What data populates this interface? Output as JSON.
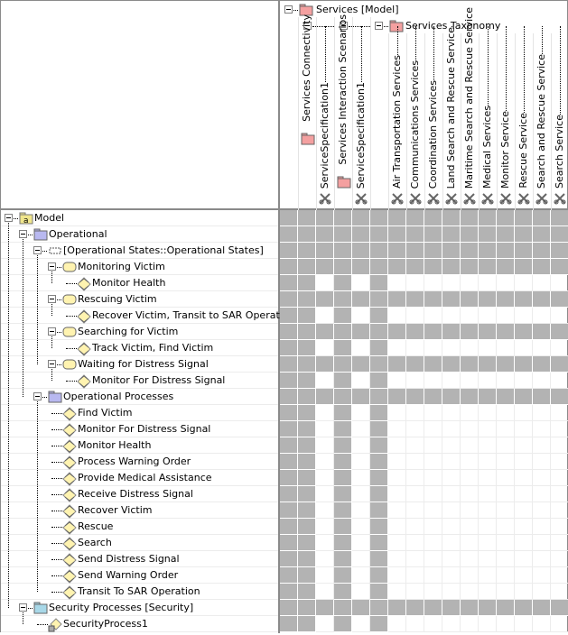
{
  "colors": {
    "na_cell": "#b3b3b3",
    "package": "#f4a0a0",
    "op_package": "#b8b8f0",
    "security_package": "#a8d8e8",
    "state": "#fff3b0"
  },
  "header": {
    "root": {
      "label": "Services [Model]",
      "icon": "package-icon"
    },
    "taxonomy": {
      "label": "Services Taxonomy",
      "icon": "package-icon"
    }
  },
  "columns": [
    {
      "label": "",
      "icon": "",
      "is_group": true
    },
    {
      "label": "Services Connectivity",
      "icon": "package-icon",
      "is_group": true
    },
    {
      "label": "ServiceSpecification1",
      "icon": "service-specification-icon",
      "is_group": false
    },
    {
      "label": "Services Interaction Scenarios",
      "icon": "package-icon",
      "is_group": true
    },
    {
      "label": "ServiceSpecification1",
      "icon": "service-specification-icon",
      "is_group": false
    },
    {
      "label": "",
      "icon": "",
      "is_group": true
    },
    {
      "label": "Air Transportation Services",
      "icon": "service-specification-icon",
      "is_group": false
    },
    {
      "label": "Communications Services",
      "icon": "service-specification-icon",
      "is_group": false
    },
    {
      "label": "Coordination Services",
      "icon": "service-specification-icon",
      "is_group": false
    },
    {
      "label": "Land Search and Rescue Service",
      "icon": "service-specification-icon",
      "is_group": false
    },
    {
      "label": "Maritime Search and Rescue Service",
      "icon": "service-specification-icon",
      "is_group": false
    },
    {
      "label": "Medical Services",
      "icon": "service-specification-icon",
      "is_group": false
    },
    {
      "label": "Monitor Service",
      "icon": "service-specification-icon",
      "is_group": false
    },
    {
      "label": "Rescue Service",
      "icon": "service-specification-icon",
      "is_group": false
    },
    {
      "label": "Search and Rescue Service",
      "icon": "service-specification-icon",
      "is_group": false
    },
    {
      "label": "Search Service",
      "icon": "service-specification-icon",
      "is_group": false
    }
  ],
  "rows": [
    {
      "label": "Model",
      "level": 0,
      "icon": "model-icon",
      "is_group": true
    },
    {
      "label": "Operational",
      "level": 1,
      "icon": "package-icon",
      "is_group": true
    },
    {
      "label": "[Operational States::Operational States]",
      "level": 2,
      "icon": "region-icon",
      "is_group": true
    },
    {
      "label": "Monitoring Victim",
      "level": 3,
      "icon": "state-icon",
      "is_group": true
    },
    {
      "label": "Monitor Health",
      "level": 4,
      "icon": "activity-icon",
      "is_group": false
    },
    {
      "label": "Rescuing Victim",
      "level": 3,
      "icon": "state-icon",
      "is_group": true
    },
    {
      "label": "Recover Victim, Transit to SAR Operation",
      "level": 4,
      "icon": "activity-icon",
      "is_group": false
    },
    {
      "label": "Searching for Victim",
      "level": 3,
      "icon": "state-icon",
      "is_group": true
    },
    {
      "label": "Track Victim, Find Victim",
      "level": 4,
      "icon": "activity-icon",
      "is_group": false
    },
    {
      "label": "Waiting for Distress Signal",
      "level": 3,
      "icon": "state-icon",
      "is_group": true
    },
    {
      "label": "Monitor For Distress Signal",
      "level": 4,
      "icon": "activity-icon",
      "is_group": false
    },
    {
      "label": "Operational Processes",
      "level": 2,
      "icon": "package-icon",
      "is_group": true
    },
    {
      "label": "Find Victim",
      "level": 3,
      "icon": "activity-icon",
      "is_group": false
    },
    {
      "label": "Monitor For Distress Signal",
      "level": 3,
      "icon": "activity-icon",
      "is_group": false
    },
    {
      "label": "Monitor Health",
      "level": 3,
      "icon": "activity-icon",
      "is_group": false
    },
    {
      "label": "Process Warning Order",
      "level": 3,
      "icon": "activity-icon",
      "is_group": false
    },
    {
      "label": "Provide Medical Assistance",
      "level": 3,
      "icon": "activity-icon",
      "is_group": false
    },
    {
      "label": "Receive Distress Signal",
      "level": 3,
      "icon": "activity-icon",
      "is_group": false
    },
    {
      "label": "Recover Victim",
      "level": 3,
      "icon": "activity-icon",
      "is_group": false
    },
    {
      "label": "Rescue",
      "level": 3,
      "icon": "activity-icon",
      "is_group": false
    },
    {
      "label": "Search",
      "level": 3,
      "icon": "activity-icon",
      "is_group": false
    },
    {
      "label": "Send Distress Signal",
      "level": 3,
      "icon": "activity-icon",
      "is_group": false
    },
    {
      "label": "Send Warning Order",
      "level": 3,
      "icon": "activity-icon",
      "is_group": false
    },
    {
      "label": "Transit To SAR Operation",
      "level": 3,
      "icon": "activity-icon",
      "is_group": false
    },
    {
      "label": "Security Processes [Security]",
      "level": 1,
      "icon": "security-package-icon",
      "is_group": true
    },
    {
      "label": "SecurityProcess1",
      "level": 2,
      "icon": "security-process-icon",
      "is_group": false
    }
  ]
}
